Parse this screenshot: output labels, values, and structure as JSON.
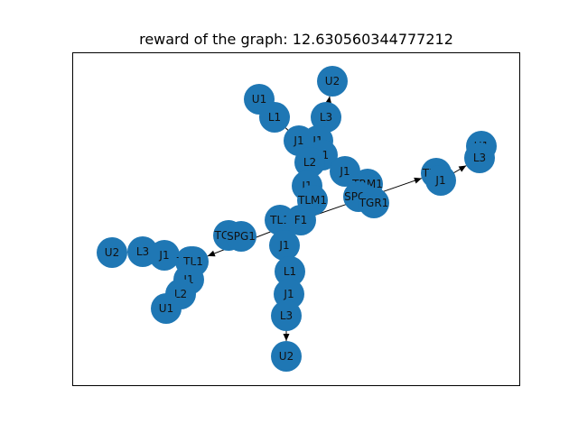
{
  "title": "reward of the graph: 12.630560344777212",
  "colors": {
    "node": "#1f77b4",
    "edge": "#000000",
    "frame": "#000000",
    "background": "#ffffff"
  },
  "nodes": [
    {
      "id": "n_u2_top",
      "label": "U2"
    },
    {
      "id": "n_u1_a",
      "label": "U1"
    },
    {
      "id": "n_l1_a",
      "label": "L1"
    },
    {
      "id": "n_l3_a",
      "label": "L3"
    },
    {
      "id": "n_j1_a",
      "label": "J1"
    },
    {
      "id": "n_j1_b",
      "label": "J1"
    },
    {
      "id": "n_l1_b",
      "label": "L1"
    },
    {
      "id": "n_l2_a",
      "label": "L2"
    },
    {
      "id": "n_j1_c",
      "label": "J1"
    },
    {
      "id": "n_trm1",
      "label": "TRM1"
    },
    {
      "id": "n_spg1_r",
      "label": "SPG1"
    },
    {
      "id": "n_tgr1",
      "label": "TGR1"
    },
    {
      "id": "n_j1_d",
      "label": "J1"
    },
    {
      "id": "n_tlm1",
      "label": "TLM1"
    },
    {
      "id": "n_tl1",
      "label": "TL1"
    },
    {
      "id": "n_f1",
      "label": "F1"
    },
    {
      "id": "n_trp1_r",
      "label": "TRP1"
    },
    {
      "id": "n_j1_r",
      "label": "J1"
    },
    {
      "id": "n_u1_r",
      "label": "U1"
    },
    {
      "id": "n_l3_r",
      "label": "L3"
    },
    {
      "id": "n_tgl1",
      "label": "TGL1"
    },
    {
      "id": "n_spg1_l",
      "label": "SPG1"
    },
    {
      "id": "n_u2_l",
      "label": "U2"
    },
    {
      "id": "n_l3_l",
      "label": "L3"
    },
    {
      "id": "n_j1_l",
      "label": "J1"
    },
    {
      "id": "n_trp1_l",
      "label": "TRP1"
    },
    {
      "id": "n_tl1_l",
      "label": "TL1"
    },
    {
      "id": "n_j1_l2",
      "label": "J1"
    },
    {
      "id": "n_l2_l",
      "label": "L2"
    },
    {
      "id": "n_u1_l",
      "label": "U1"
    },
    {
      "id": "n_j1_m1",
      "label": "J1"
    },
    {
      "id": "n_l1_m",
      "label": "L1"
    },
    {
      "id": "n_j1_m2",
      "label": "J1"
    },
    {
      "id": "n_l3_m",
      "label": "L3"
    },
    {
      "id": "n_u2_m",
      "label": "U2"
    }
  ],
  "edges": [
    {
      "from": "n_l3_a",
      "to": "n_u2_top",
      "arrow": true
    },
    {
      "from": "n_j1_b",
      "to": "n_l3_a",
      "arrow": false
    },
    {
      "from": "n_j1_a",
      "to": "n_l1_a",
      "arrow": false
    },
    {
      "from": "n_l1_a",
      "to": "n_u1_a",
      "arrow": false
    },
    {
      "from": "n_j1_a",
      "to": "n_l1_b",
      "arrow": false
    },
    {
      "from": "n_l1_b",
      "to": "n_l2_a",
      "arrow": false
    },
    {
      "from": "n_l2_a",
      "to": "n_j1_d",
      "arrow": false
    },
    {
      "from": "n_j1_d",
      "to": "n_tlm1",
      "arrow": false
    },
    {
      "from": "n_tlm1",
      "to": "n_f1",
      "arrow": false
    },
    {
      "from": "n_f1",
      "to": "n_tl1",
      "arrow": false
    },
    {
      "from": "n_j1_c",
      "to": "n_trm1",
      "arrow": false
    },
    {
      "from": "n_trm1",
      "to": "n_spg1_r",
      "arrow": false
    },
    {
      "from": "n_spg1_r",
      "to": "n_tgr1",
      "arrow": false
    },
    {
      "from": "n_f1",
      "to": "n_trp1_r",
      "arrow": true
    },
    {
      "from": "n_j1_r",
      "to": "n_l3_r",
      "arrow": true
    },
    {
      "from": "n_l3_r",
      "to": "n_u1_r",
      "arrow": false
    },
    {
      "from": "n_f1",
      "to": "n_tl1_l",
      "arrow": true
    },
    {
      "from": "n_tgl1",
      "to": "n_spg1_l",
      "arrow": false
    },
    {
      "from": "n_tl1_l",
      "to": "n_j1_l",
      "arrow": false
    },
    {
      "from": "n_j1_l",
      "to": "n_l3_l",
      "arrow": false
    },
    {
      "from": "n_l3_l",
      "to": "n_u2_l",
      "arrow": false
    },
    {
      "from": "n_trp1_l",
      "to": "n_j1_l2",
      "arrow": false
    },
    {
      "from": "n_j1_l2",
      "to": "n_l2_l",
      "arrow": false
    },
    {
      "from": "n_l2_l",
      "to": "n_u1_l",
      "arrow": false
    },
    {
      "from": "n_tl1",
      "to": "n_j1_m1",
      "arrow": false
    },
    {
      "from": "n_j1_m1",
      "to": "n_l1_m",
      "arrow": false
    },
    {
      "from": "n_l1_m",
      "to": "n_j1_m2",
      "arrow": false
    },
    {
      "from": "n_j1_m2",
      "to": "n_l3_m",
      "arrow": false
    },
    {
      "from": "n_l3_m",
      "to": "n_u2_m",
      "arrow": true
    }
  ]
}
